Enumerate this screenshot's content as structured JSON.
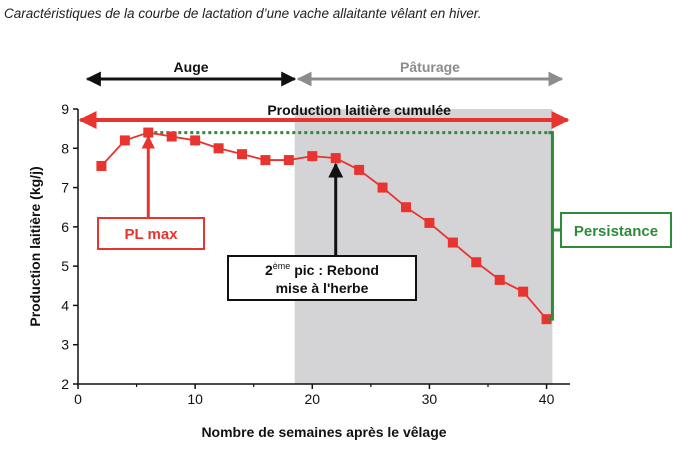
{
  "caption": "Caractéristiques de la courbe de lactation d’une vache allaitante vêlant en hiver.",
  "colors": {
    "red": "#e8332e",
    "black": "#111111",
    "grey_arrow": "#8c8c8c",
    "grey_area": "#d4d4d6",
    "green": "#2e8b3a"
  },
  "chart_data": {
    "type": "line",
    "xlabel": "Nombre de semaines après le vêlage",
    "ylabel": "Production laitière (kg/j)",
    "xlim": [
      0,
      42
    ],
    "ylim": [
      2,
      9
    ],
    "xticks": [
      0,
      10,
      20,
      30,
      40
    ],
    "yticks": [
      2,
      3,
      4,
      5,
      6,
      7,
      8,
      9
    ],
    "grid": false,
    "series": [
      {
        "marker": "square",
        "x": [
          2,
          4,
          6,
          8,
          10,
          12,
          14,
          16,
          18,
          20,
          22,
          24,
          26,
          28,
          30,
          32,
          34,
          36,
          38,
          40
        ],
        "y": [
          7.55,
          8.2,
          8.4,
          8.3,
          8.2,
          8.0,
          7.85,
          7.7,
          7.7,
          7.8,
          7.75,
          7.45,
          7.0,
          6.5,
          6.1,
          5.6,
          5.1,
          4.65,
          4.35,
          3.65
        ]
      }
    ],
    "shaded_period": {
      "x_start": 18.5,
      "x_end": 40.5
    },
    "peak_level": 8.4,
    "annotations": {
      "auge": "Auge",
      "paturage": "Pâturage",
      "production_cumulee": "Production laitière cumulée",
      "pl_max": "PL max",
      "rebond_sup": "ème",
      "rebond_line1_a": "2",
      "rebond_line1_b": " pic : Rebond",
      "rebond_line2": "mise à l'herbe",
      "persistance": "Persistance"
    }
  }
}
